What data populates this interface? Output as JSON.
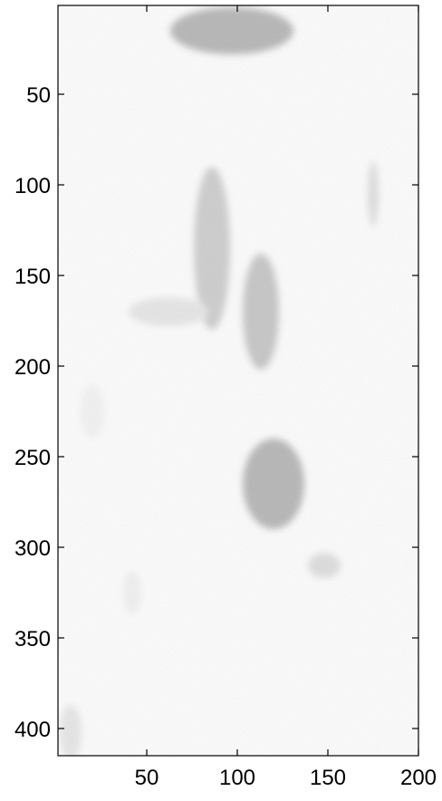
{
  "image": {
    "x_ticks": [
      "50",
      "100",
      "150",
      "200"
    ],
    "y_ticks": [
      "50",
      "100",
      "150",
      "200",
      "250",
      "300",
      "350",
      "400"
    ],
    "x_range": [
      1,
      200
    ],
    "y_range": [
      1,
      415
    ],
    "colormap": "gray",
    "blobs": [
      {
        "name": "top-blob",
        "cx": 97,
        "cy": 15,
        "rx": 34,
        "ry": 13,
        "shade": 0.45
      },
      {
        "name": "left-vertical-streak",
        "cx": 86,
        "cy": 135,
        "rx": 10,
        "ry": 45,
        "shade": 0.3
      },
      {
        "name": "middle-vertical-streak",
        "cx": 113,
        "cy": 170,
        "rx": 10,
        "ry": 32,
        "shade": 0.35
      },
      {
        "name": "horizontal-streak",
        "cx": 62,
        "cy": 170,
        "rx": 22,
        "ry": 8,
        "shade": 0.15
      },
      {
        "name": "right-diagonal-streak",
        "cx": 175,
        "cy": 105,
        "rx": 3,
        "ry": 18,
        "shade": 0.2
      },
      {
        "name": "lower-center-blob",
        "cx": 120,
        "cy": 265,
        "rx": 17,
        "ry": 25,
        "shade": 0.45
      },
      {
        "name": "lower-right-blob",
        "cx": 148,
        "cy": 310,
        "rx": 9,
        "ry": 7,
        "shade": 0.2
      },
      {
        "name": "left-faint-blob",
        "cx": 20,
        "cy": 225,
        "rx": 7,
        "ry": 15,
        "shade": 0.07
      },
      {
        "name": "lower-left-faint-blob",
        "cx": 42,
        "cy": 325,
        "rx": 5,
        "ry": 12,
        "shade": 0.08
      },
      {
        "name": "bottom-left-corner-blob",
        "cx": 8,
        "cy": 402,
        "rx": 6,
        "ry": 15,
        "shade": 0.15
      }
    ]
  }
}
